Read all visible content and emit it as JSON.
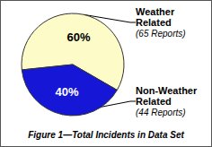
{
  "chart_data": {
    "type": "pie",
    "title": "Figure 1—Total Incidents in Data Set",
    "categories": [
      "Weather Related",
      "Non-Weather Related"
    ],
    "values": [
      60,
      40
    ],
    "value_labels": [
      "60%",
      "40%"
    ],
    "count_labels": [
      "(65 Reports)",
      "(44 Reports)"
    ],
    "colors": [
      "#fdfbc8",
      "#1616d6"
    ],
    "data_labels": true
  }
}
